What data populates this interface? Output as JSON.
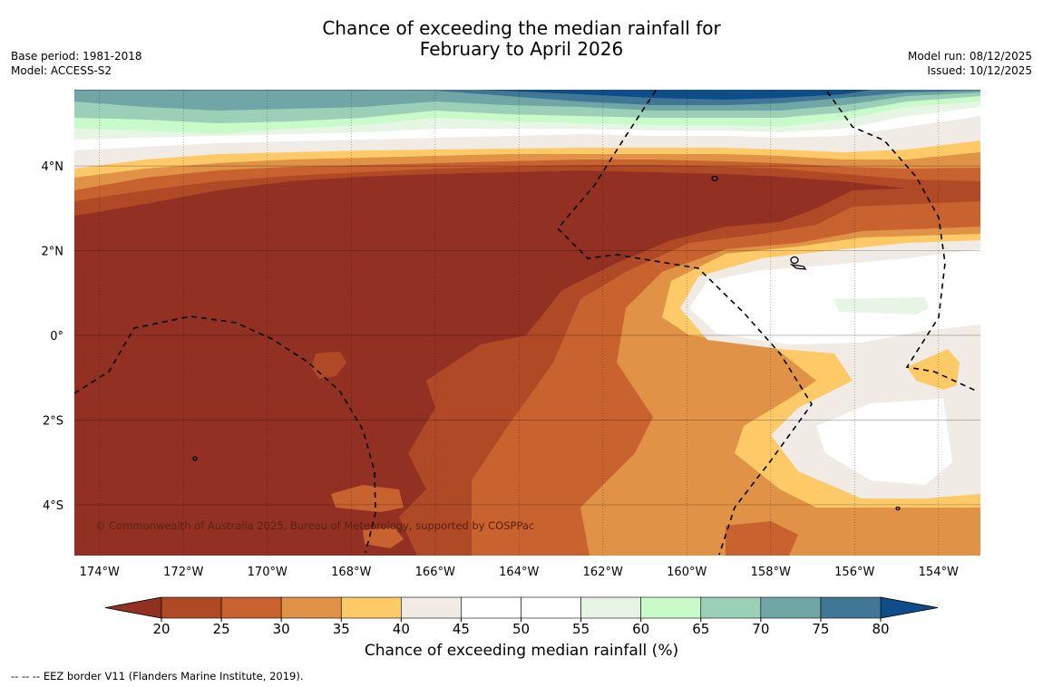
{
  "title": {
    "line1": "Chance of exceeding the median rainfall for",
    "line2": "February to April 2026"
  },
  "meta_left": {
    "base_period": "Base period: 1981-2018",
    "model": "Model: ACCESS-S2"
  },
  "meta_right": {
    "model_run": "Model run: 08/12/2025",
    "issued": "Issued: 10/12/2025"
  },
  "map": {
    "copyright": "© Commonwealth of Australia 2025, Bureau of Meteorology, supported by COSPPac",
    "lon_range": [
      -174.6,
      -153.0
    ],
    "lat_range": [
      -5.2,
      5.8
    ],
    "lat_ticks": [
      {
        "value": 4,
        "label": "4°N"
      },
      {
        "value": 2,
        "label": "2°N"
      },
      {
        "value": 0,
        "label": "0°"
      },
      {
        "value": -2,
        "label": "2°S"
      },
      {
        "value": -4,
        "label": "4°S"
      }
    ],
    "lon_ticks": [
      {
        "value": -174,
        "label": "174°W"
      },
      {
        "value": -172,
        "label": "172°W"
      },
      {
        "value": -170,
        "label": "170°W"
      },
      {
        "value": -168,
        "label": "168°W"
      },
      {
        "value": -166,
        "label": "166°W"
      },
      {
        "value": -164,
        "label": "164°W"
      },
      {
        "value": -162,
        "label": "162°W"
      },
      {
        "value": -160,
        "label": "160°W"
      },
      {
        "value": -158,
        "label": "158°W"
      },
      {
        "value": -156,
        "label": "156°W"
      },
      {
        "value": -154,
        "label": "154°W"
      }
    ]
  },
  "colorbar": {
    "title": "Chance of exceeding median rainfall (%)",
    "ticks": [
      "20",
      "25",
      "30",
      "35",
      "40",
      "45",
      "50",
      "55",
      "60",
      "65",
      "70",
      "75",
      "80"
    ],
    "under_color": "#923123",
    "over_color": "#0f4d8a",
    "bins": [
      {
        "range": "20-25",
        "color": "#b04a26"
      },
      {
        "range": "25-30",
        "color": "#c8622f"
      },
      {
        "range": "30-35",
        "color": "#e09346"
      },
      {
        "range": "35-40",
        "color": "#fec967"
      },
      {
        "range": "40-45",
        "color": "#f0ebe5"
      },
      {
        "range": "45-50",
        "color": "#ffffff"
      },
      {
        "range": "50-55",
        "color": "#ffffff"
      },
      {
        "range": "55-60",
        "color": "#e7f5e5"
      },
      {
        "range": "60-65",
        "color": "#c8fbc9"
      },
      {
        "range": "65-70",
        "color": "#9bcfb7"
      },
      {
        "range": "70-75",
        "color": "#71a6a6"
      },
      {
        "range": "75-80",
        "color": "#407794"
      }
    ]
  },
  "footnote": "--  --  -- EEZ border V11 (Flanders Marine Institute, 2019)."
}
